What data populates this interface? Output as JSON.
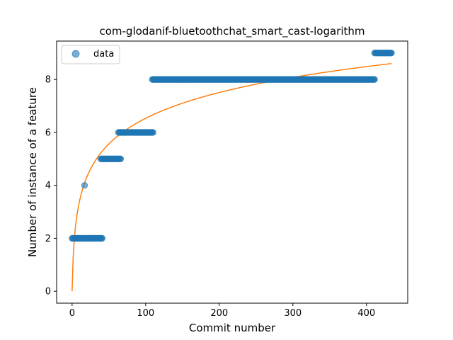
{
  "chart_data": {
    "type": "scatter",
    "title": "com-glodanif-bluetoothchat_smart_cast-logarithm",
    "xlabel": "Commit number",
    "ylabel": "Number of instance of a feature",
    "xlim": [
      -21,
      456
    ],
    "ylim": [
      -0.45,
      9.45
    ],
    "xticks": [
      0,
      100,
      200,
      300,
      400
    ],
    "yticks": [
      0,
      2,
      4,
      6,
      8
    ],
    "grid": false,
    "legend": {
      "position": "top-left",
      "entries": [
        "data"
      ]
    },
    "series": [
      {
        "name": "data",
        "kind": "scatter",
        "color": "#1f77b4",
        "segments": [
          {
            "x_start": 0,
            "x_end": 16,
            "y": 2
          },
          {
            "x_start": 17,
            "x_end": 17,
            "y": 4
          },
          {
            "x_start": 18,
            "x_end": 41,
            "y": 2
          },
          {
            "x_start": 39,
            "x_end": 66,
            "y": 5
          },
          {
            "x_start": 63,
            "x_end": 110,
            "y": 6
          },
          {
            "x_start": 109,
            "x_end": 411,
            "y": 8
          },
          {
            "x_start": 411,
            "x_end": 434,
            "y": 9
          }
        ]
      },
      {
        "kind": "line",
        "color": "#ff7f0e",
        "model": "logarithmic fit y = a*ln(x+1)",
        "a": 1.4157,
        "x_start": 0,
        "x_end": 434
      }
    ]
  }
}
